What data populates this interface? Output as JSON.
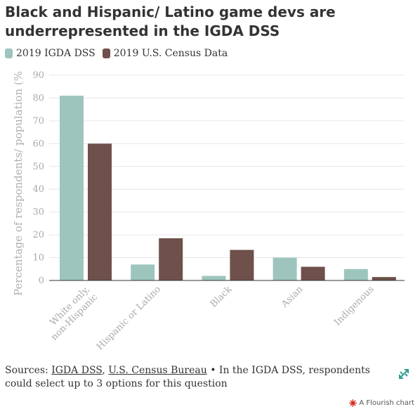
{
  "title": "Black and Hispanic/ Latino game devs are underrepresented in the IGDA DSS",
  "legend": {
    "items": [
      {
        "label": "2019 IGDA DSS",
        "color": "#9dc5be"
      },
      {
        "label": "2019 U.S. Census Data",
        "color": "#6f504b"
      }
    ]
  },
  "footer": {
    "prefix": "Sources: ",
    "link1": "IGDA DSS",
    "sep": ", ",
    "link2": "U.S. Census Bureau",
    "note": " • In the IGDA DSS, respondents could select up to 3 options for this question"
  },
  "credit": "A Flourish chart",
  "chart_data": {
    "type": "bar",
    "title": "Black and Hispanic/ Latino game devs are underrepresented in the IGDA DSS",
    "xlabel": "",
    "ylabel": "Percentage of respondents/ population (%",
    "ylim": [
      0,
      90
    ],
    "yticks": [
      0,
      10,
      20,
      30,
      40,
      50,
      60,
      70,
      80,
      90
    ],
    "grid": true,
    "legend_position": "top-left",
    "categories": [
      [
        "White only,",
        "non-Hispanic"
      ],
      [
        "Hispanic or Latino"
      ],
      [
        "Black"
      ],
      [
        "Asian"
      ],
      [
        "Indigenous"
      ]
    ],
    "series": [
      {
        "name": "2019 IGDA DSS",
        "color": "#9dc5be",
        "values": [
          81,
          7,
          2,
          10,
          5
        ]
      },
      {
        "name": "2019 U.S. Census Data",
        "color": "#6f504b",
        "values": [
          60,
          18.5,
          13.4,
          6,
          1.5
        ]
      }
    ]
  }
}
